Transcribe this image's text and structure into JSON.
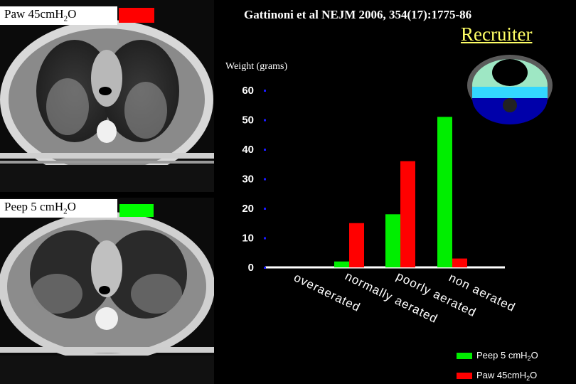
{
  "citation": "Gattinoni et al NEJM 2006, 354(17):1775-86",
  "recruiter_label": "Recruiter",
  "panels": {
    "top": {
      "label_pre": "Paw 45cmH",
      "label_sub": "2",
      "label_post": "O",
      "swatch_color": "#ff0000"
    },
    "bottom": {
      "label_pre": "Peep 5 cmH",
      "label_sub": "2",
      "label_post": "O",
      "swatch_color": "#00ff00"
    }
  },
  "colors": {
    "peep": "#00ee00",
    "paw": "#ff0000",
    "background": "#000000"
  },
  "chart_data": {
    "type": "bar",
    "ylabel": "Weight (grams)",
    "ylim": [
      0,
      60
    ],
    "yticks": [
      "0",
      "10",
      "20",
      "30",
      "40",
      "50",
      "60"
    ],
    "categories": [
      "overaerated",
      "normally aerated",
      "poorly aerated",
      "non aerated"
    ],
    "series": [
      {
        "name_pre": "Peep 5 cmH",
        "name_sub": "2",
        "name_post": "O",
        "color": "#00ee00",
        "values": [
          0,
          2,
          18,
          51
        ]
      },
      {
        "name_pre": "Paw 45cmH",
        "name_sub": "2",
        "name_post": "O",
        "color": "#ff0000",
        "values": [
          0,
          15,
          36,
          3
        ]
      }
    ],
    "legend_position": "bottom-right"
  }
}
